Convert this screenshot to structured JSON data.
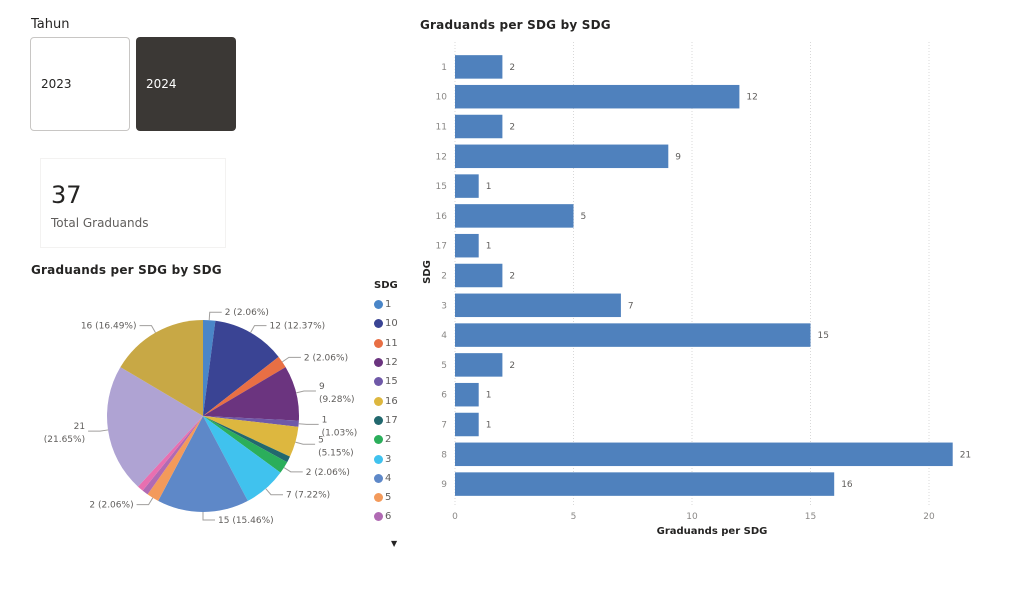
{
  "slicer": {
    "title": "Tahun",
    "options": [
      {
        "label": "2023",
        "selected": false
      },
      {
        "label": "2024",
        "selected": true
      }
    ]
  },
  "card": {
    "value": "37",
    "label": "Total Graduands"
  },
  "colors": {
    "bar": "#4F81BD",
    "selected_slicer": "#3B3835"
  },
  "chart_data": [
    {
      "type": "pie",
      "title": "Graduands per SDG by SDG",
      "legend_title": "SDG",
      "legend_position": "right",
      "legend_more_icon": "caret-down-icon",
      "slices": [
        {
          "label": "1",
          "value": 2,
          "percent": "2.06%",
          "data_label": "2 (2.06%)",
          "color": "#4A86C8"
        },
        {
          "label": "10",
          "value": 12,
          "percent": "12.37%",
          "data_label": "12 (12.37%)",
          "color": "#3A4494"
        },
        {
          "label": "11",
          "value": 2,
          "percent": "2.06%",
          "data_label": "2 (2.06%)",
          "color": "#E86F44"
        },
        {
          "label": "12",
          "value": 9,
          "percent": "9.28%",
          "data_label": "9 (9.28%)",
          "color": "#6B347F"
        },
        {
          "label": "15",
          "value": 1,
          "percent": "1.03%",
          "data_label": "1 (1.03%)",
          "color": "#6F59A8"
        },
        {
          "label": "16",
          "value": 5,
          "percent": "5.15%",
          "data_label": "5 (5.15%)",
          "color": "#DDB73F"
        },
        {
          "label": "17",
          "value": 1,
          "percent": "1.03%",
          "data_label": "",
          "color": "#22686E"
        },
        {
          "label": "2",
          "value": 2,
          "percent": "2.06%",
          "data_label": "2 (2.06%)",
          "color": "#2BAE5B"
        },
        {
          "label": "3",
          "value": 7,
          "percent": "7.22%",
          "data_label": "7 (7.22%)",
          "color": "#40C2EE"
        },
        {
          "label": "4",
          "value": 15,
          "percent": "15.46%",
          "data_label": "15 (15.46%)",
          "color": "#5E88C8"
        },
        {
          "label": "5",
          "value": 2,
          "percent": "2.06%",
          "data_label": "2 (2.06%)",
          "color": "#F39A5B"
        },
        {
          "label": "6",
          "value": 1,
          "percent": "1.03%",
          "data_label": "",
          "color": "#B06AB3"
        },
        {
          "label": "7",
          "value": 1,
          "percent": "1.03%",
          "data_label": "",
          "color": "#E86FB0"
        },
        {
          "label": "8",
          "value": 21,
          "percent": "21.65%",
          "data_label": "21 (21.65%)",
          "color": "#AFA3D3"
        },
        {
          "label": "9",
          "value": 16,
          "percent": "16.49%",
          "data_label": "16 (16.49%)",
          "color": "#C8A845"
        }
      ],
      "legend_visible": [
        "1",
        "10",
        "11",
        "12",
        "15",
        "16",
        "17",
        "2",
        "3",
        "4",
        "5",
        "6"
      ]
    },
    {
      "type": "bar",
      "orientation": "horizontal",
      "title": "Graduands per SDG by SDG",
      "xlabel": "Graduands per SDG",
      "ylabel": "SDG",
      "xlim": [
        0,
        21
      ],
      "xticks": [
        0,
        5,
        10,
        15,
        20
      ],
      "grid": true,
      "categories": [
        "1",
        "10",
        "11",
        "12",
        "15",
        "16",
        "17",
        "2",
        "3",
        "4",
        "5",
        "6",
        "7",
        "8",
        "9"
      ],
      "values": [
        2,
        12,
        2,
        9,
        1,
        5,
        1,
        2,
        7,
        15,
        2,
        1,
        1,
        21,
        16
      ]
    }
  ]
}
